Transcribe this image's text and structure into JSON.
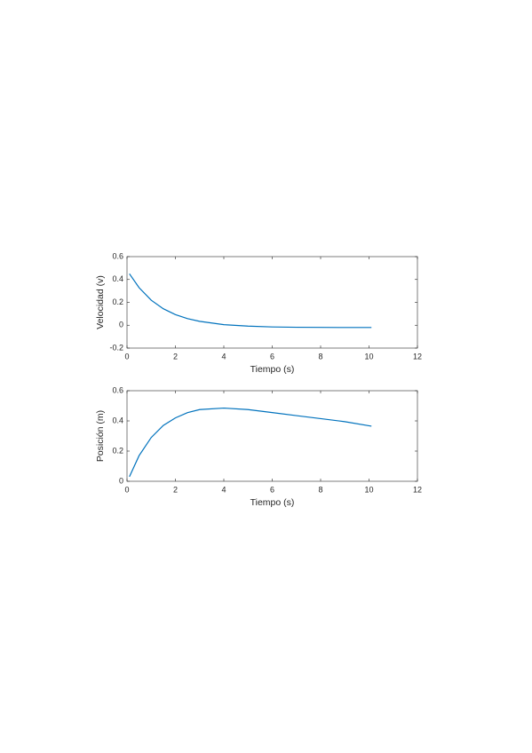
{
  "chart_data": [
    {
      "type": "line",
      "x_label": "Tiempo (s)",
      "y_label": "Velocidad (v)",
      "xlim": [
        0,
        12
      ],
      "xticks": [
        0,
        2,
        4,
        6,
        8,
        10,
        12
      ],
      "ylim": [
        -0.2,
        0.6
      ],
      "yticks": [
        -0.2,
        0,
        0.2,
        0.4,
        0.6
      ],
      "x": [
        0.1,
        0.5,
        1,
        1.5,
        2,
        2.5,
        3,
        4,
        5,
        6,
        7,
        8,
        9,
        10.1
      ],
      "series": [
        {
          "color": "#0072bd",
          "values": [
            0.45,
            0.328,
            0.219,
            0.144,
            0.093,
            0.058,
            0.034,
            0.005,
            -0.008,
            -0.015,
            -0.018,
            -0.019,
            -0.02,
            -0.02
          ]
        }
      ]
    },
    {
      "type": "line",
      "x_label": "Tiempo (s)",
      "y_label": "Posición (m)",
      "xlim": [
        0,
        12
      ],
      "xticks": [
        0,
        2,
        4,
        6,
        8,
        10,
        12
      ],
      "ylim": [
        0,
        0.6
      ],
      "yticks": [
        0,
        0.2,
        0.4,
        0.6
      ],
      "x": [
        0.1,
        0.5,
        1,
        1.5,
        2,
        2.5,
        3,
        4,
        5,
        6,
        7,
        8,
        9,
        10.1
      ],
      "series": [
        {
          "color": "#0072bd",
          "values": [
            0.03,
            0.17,
            0.29,
            0.37,
            0.42,
            0.455,
            0.475,
            0.485,
            0.475,
            0.455,
            0.435,
            0.415,
            0.395,
            0.365
          ]
        }
      ]
    }
  ]
}
